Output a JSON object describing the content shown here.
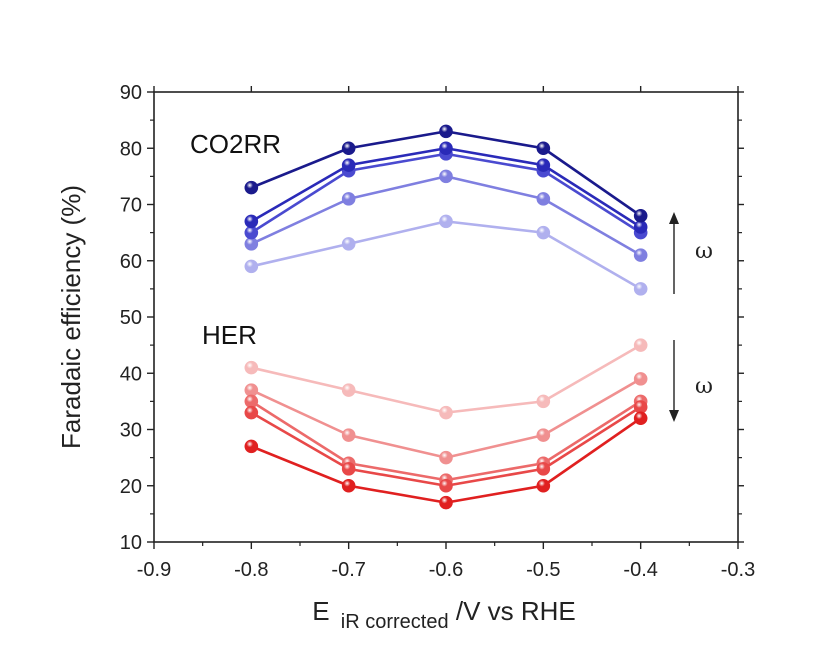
{
  "chart_data": {
    "type": "line",
    "xlabel_main": "E",
    "xlabel_sub": "iR corrected",
    "xlabel_tail": "/V vs RHE",
    "ylabel": "Faradaic efficiency (%)",
    "xlim": [
      -0.9,
      -0.3
    ],
    "ylim": [
      10,
      90
    ],
    "xticks": [
      -0.9,
      -0.8,
      -0.7,
      -0.6,
      -0.5,
      -0.4,
      -0.3
    ],
    "xtick_labels": [
      "-0.9",
      "-0.8",
      "-0.7",
      "-0.6",
      "-0.5",
      "-0.4",
      "-0.3"
    ],
    "yticks": [
      10,
      20,
      30,
      40,
      50,
      60,
      70,
      80,
      90
    ],
    "ytick_labels": [
      "10",
      "20",
      "30",
      "40",
      "50",
      "60",
      "70",
      "80",
      "90"
    ],
    "x": [
      -0.8,
      -0.7,
      -0.6,
      -0.5,
      -0.4
    ],
    "group_labels": {
      "co2rr": "CO2RR",
      "her": "HER"
    },
    "arrow_label": "ω",
    "grid": false,
    "series": [
      {
        "group": "co2rr",
        "color": "#1a1a8c",
        "values": [
          73,
          80,
          83,
          80,
          68
        ]
      },
      {
        "group": "co2rr",
        "color": "#2a2ab8",
        "values": [
          67,
          77,
          80,
          77,
          66
        ]
      },
      {
        "group": "co2rr",
        "color": "#4a4ad0",
        "values": [
          65,
          76,
          79,
          76,
          65
        ]
      },
      {
        "group": "co2rr",
        "color": "#7f7fe0",
        "values": [
          63,
          71,
          75,
          71,
          61
        ]
      },
      {
        "group": "co2rr",
        "color": "#b0b0ee",
        "values": [
          59,
          63,
          67,
          65,
          55
        ]
      },
      {
        "group": "her",
        "color": "#e02020",
        "values": [
          27,
          20,
          17,
          20,
          32
        ]
      },
      {
        "group": "her",
        "color": "#e84848",
        "values": [
          33,
          23,
          20,
          23,
          34
        ]
      },
      {
        "group": "her",
        "color": "#ec6a6a",
        "values": [
          35,
          24,
          21,
          24,
          35
        ]
      },
      {
        "group": "her",
        "color": "#f09090",
        "values": [
          37,
          29,
          25,
          29,
          39
        ]
      },
      {
        "group": "her",
        "color": "#f6baba",
        "values": [
          41,
          37,
          33,
          35,
          45
        ]
      }
    ]
  }
}
